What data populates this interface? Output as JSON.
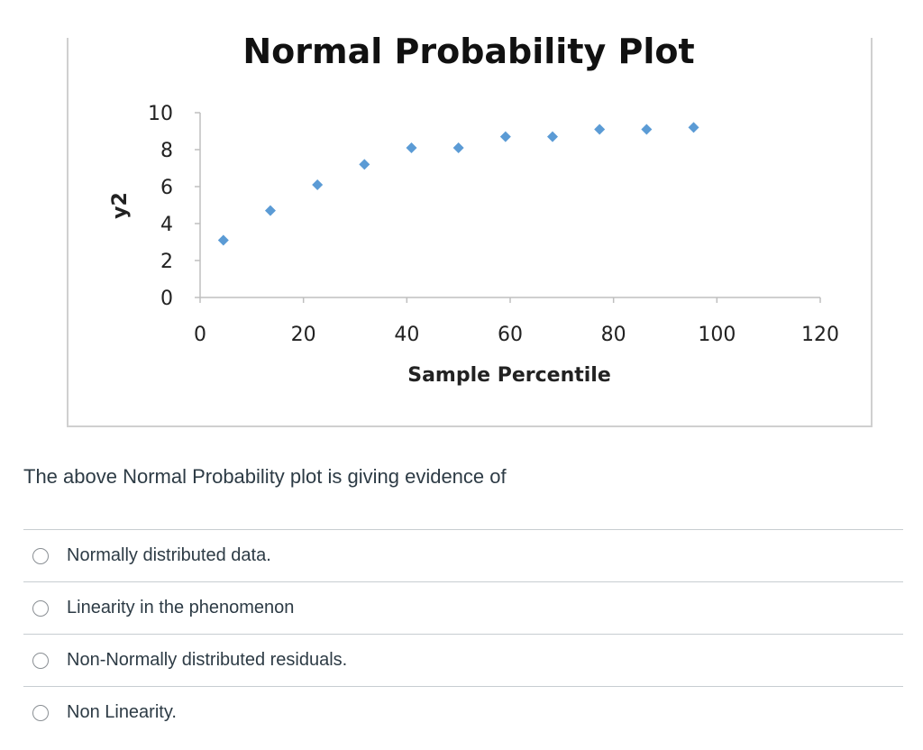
{
  "question": {
    "text": "The above Normal Probability plot is giving evidence of",
    "options": [
      {
        "label": "Normally distributed data."
      },
      {
        "label": "Linearity in the phenomenon"
      },
      {
        "label": "Non-Normally distributed residuals."
      },
      {
        "label": "Non Linearity."
      }
    ]
  },
  "chart_data": {
    "type": "scatter",
    "title": "Normal Probability Plot",
    "xlabel": "Sample Percentile",
    "ylabel": "y2",
    "xlim": [
      0,
      120
    ],
    "ylim": [
      0,
      10
    ],
    "x_ticks": [
      "0",
      "20",
      "40",
      "60",
      "80",
      "100",
      "120"
    ],
    "y_ticks": [
      "0",
      "2",
      "4",
      "6",
      "8",
      "10"
    ],
    "marker_color": "#5b9bd5",
    "series": [
      {
        "x": [
          4.5,
          13.6,
          22.7,
          31.8,
          40.9,
          50,
          59.1,
          68.2,
          77.3,
          86.4,
          95.5
        ],
        "y": [
          3.1,
          4.7,
          6.1,
          7.2,
          8.1,
          8.1,
          8.7,
          8.7,
          9.1,
          9.1,
          9.2
        ]
      }
    ]
  }
}
